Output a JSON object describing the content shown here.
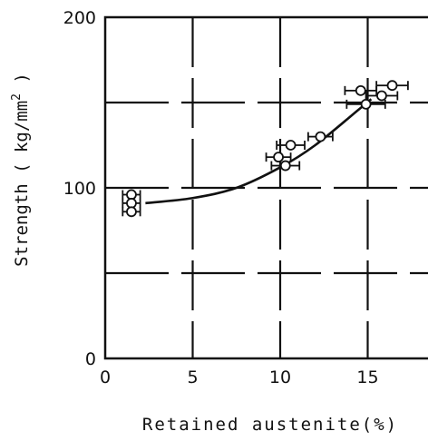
{
  "chart_data": {
    "type": "scatter",
    "title": "",
    "xlabel": "Retained austenite(%)",
    "ylabel_main": "Strength ( kg/mm",
    "ylabel_sup": "2",
    "ylabel_end": " )",
    "xlim": [
      0,
      18.5
    ],
    "ylim": [
      0,
      200
    ],
    "xticks": [
      0,
      5,
      10,
      15
    ],
    "yticks": [
      0,
      100,
      200
    ],
    "x_gridlines": [
      5,
      10,
      15
    ],
    "y_gridlines": [
      50,
      100,
      150
    ],
    "grid": true,
    "grid_style": "dashed",
    "series": [
      {
        "marker": "open-circle",
        "error_bars": "horizontal",
        "points": [
          {
            "x": 1.5,
            "y": 96,
            "xerr": 0.5
          },
          {
            "x": 1.5,
            "y": 91,
            "xerr": 0.5
          },
          {
            "x": 1.5,
            "y": 86,
            "xerr": 0.5
          },
          {
            "x": 9.9,
            "y": 118,
            "xerr": 0.7
          },
          {
            "x": 10.3,
            "y": 113,
            "xerr": 0.8
          },
          {
            "x": 10.6,
            "y": 125,
            "xerr": 0.8
          },
          {
            "x": 12.3,
            "y": 130,
            "xerr": 0.7
          },
          {
            "x": 14.6,
            "y": 157,
            "xerr": 0.9
          },
          {
            "x": 14.9,
            "y": 149,
            "xerr": 1.1
          },
          {
            "x": 15.8,
            "y": 154,
            "xerr": 0.9
          },
          {
            "x": 16.4,
            "y": 160,
            "xerr": 0.9
          }
        ]
      }
    ],
    "trend_curve": [
      {
        "x": 2.3,
        "y": 91
      },
      {
        "x": 5,
        "y": 94
      },
      {
        "x": 7.5,
        "y": 100
      },
      {
        "x": 10,
        "y": 112
      },
      {
        "x": 12,
        "y": 125
      },
      {
        "x": 14.5,
        "y": 146
      },
      {
        "x": 15.2,
        "y": 152
      }
    ]
  }
}
